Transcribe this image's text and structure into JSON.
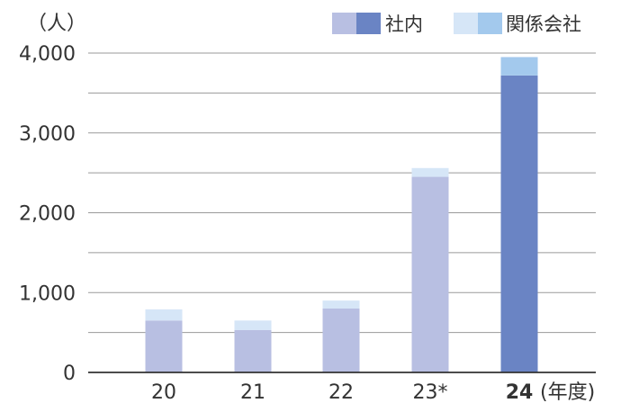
{
  "chart_data": {
    "type": "bar",
    "stacked": true,
    "y_unit": "（人）",
    "x_unit": "(年度)",
    "categories": [
      "20",
      "21",
      "22",
      "23*",
      "24"
    ],
    "highlight_category": "24",
    "ylim": [
      0,
      4000
    ],
    "yticks": [
      "0",
      "1,000",
      "2,000",
      "3,000",
      "4,000"
    ],
    "ytick_values": [
      0,
      1000,
      2000,
      3000,
      4000
    ],
    "grid": true,
    "legend_position": "top-right",
    "series": [
      {
        "name": "社内",
        "values": [
          650,
          530,
          800,
          2450,
          3720
        ],
        "color": "#b8bfe2",
        "highlight_color": "#6a84c4"
      },
      {
        "name": "関係会社",
        "values": [
          140,
          120,
          100,
          110,
          230
        ],
        "color": "#d6e6f7",
        "highlight_color": "#a3c9ed"
      }
    ]
  }
}
